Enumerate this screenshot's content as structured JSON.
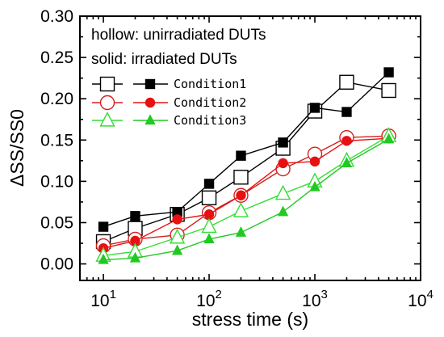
{
  "chart_data": {
    "type": "line",
    "x_scale": "log",
    "xlim": [
      6,
      10000
    ],
    "ylim": [
      -0.02,
      0.3
    ],
    "xlabel": "stress time (s)",
    "ylabel": "ΔSS/SS0",
    "x_ticks": [
      {
        "value": 10,
        "base": "10",
        "exp": "1"
      },
      {
        "value": 100,
        "base": "10",
        "exp": "2"
      },
      {
        "value": 1000,
        "base": "10",
        "exp": "3"
      },
      {
        "value": 10000,
        "base": "10",
        "exp": "4"
      }
    ],
    "y_ticks": [
      {
        "value": 0.0,
        "label": "0.00"
      },
      {
        "value": 0.05,
        "label": "0.05"
      },
      {
        "value": 0.1,
        "label": "0.10"
      },
      {
        "value": 0.15,
        "label": "0.15"
      },
      {
        "value": 0.2,
        "label": "0.20"
      },
      {
        "value": 0.25,
        "label": "0.25"
      },
      {
        "value": 0.3,
        "label": "0.30"
      }
    ],
    "annotations": [
      "hollow: unirradiated DUTs",
      "solid: irradiated DUTs"
    ],
    "legend": [
      "Condition1",
      "Condition2",
      "Condition3"
    ],
    "legend_position": "top-left",
    "x": [
      10,
      20,
      50,
      100,
      200,
      500,
      1000,
      2000,
      5000
    ],
    "series": [
      {
        "name": "Condition1",
        "state": "unirradiated",
        "marker": "square",
        "filled": false,
        "color": "#000000",
        "values": [
          0.027,
          0.043,
          0.06,
          0.08,
          0.105,
          0.14,
          0.185,
          0.22,
          0.21
        ]
      },
      {
        "name": "Condition1",
        "state": "irradiated",
        "marker": "square",
        "filled": true,
        "color": "#000000",
        "values": [
          0.045,
          0.058,
          0.063,
          0.097,
          0.131,
          0.147,
          0.189,
          0.184,
          0.232
        ]
      },
      {
        "name": "Condition2",
        "state": "unirradiated",
        "marker": "circle",
        "filled": false,
        "color": "#d42020",
        "values": [
          0.022,
          0.03,
          0.035,
          0.062,
          0.083,
          0.115,
          0.133,
          0.153,
          0.155
        ]
      },
      {
        "name": "Condition2",
        "state": "irradiated",
        "marker": "circle",
        "filled": true,
        "color": "#e81010",
        "values": [
          0.019,
          0.028,
          0.054,
          0.06,
          0.083,
          0.122,
          0.124,
          0.149,
          0.152
        ]
      },
      {
        "name": "Condition3",
        "state": "unirradiated",
        "marker": "triangle",
        "filled": false,
        "color": "#33dd33",
        "values": [
          0.01,
          0.015,
          0.032,
          0.045,
          0.064,
          0.085,
          0.1,
          0.125,
          0.155
        ]
      },
      {
        "name": "Condition3",
        "state": "irradiated",
        "marker": "triangle",
        "filled": true,
        "color": "#22c922",
        "values": [
          0.005,
          0.007,
          0.016,
          0.03,
          0.038,
          0.063,
          0.093,
          0.122,
          0.151
        ]
      }
    ]
  }
}
